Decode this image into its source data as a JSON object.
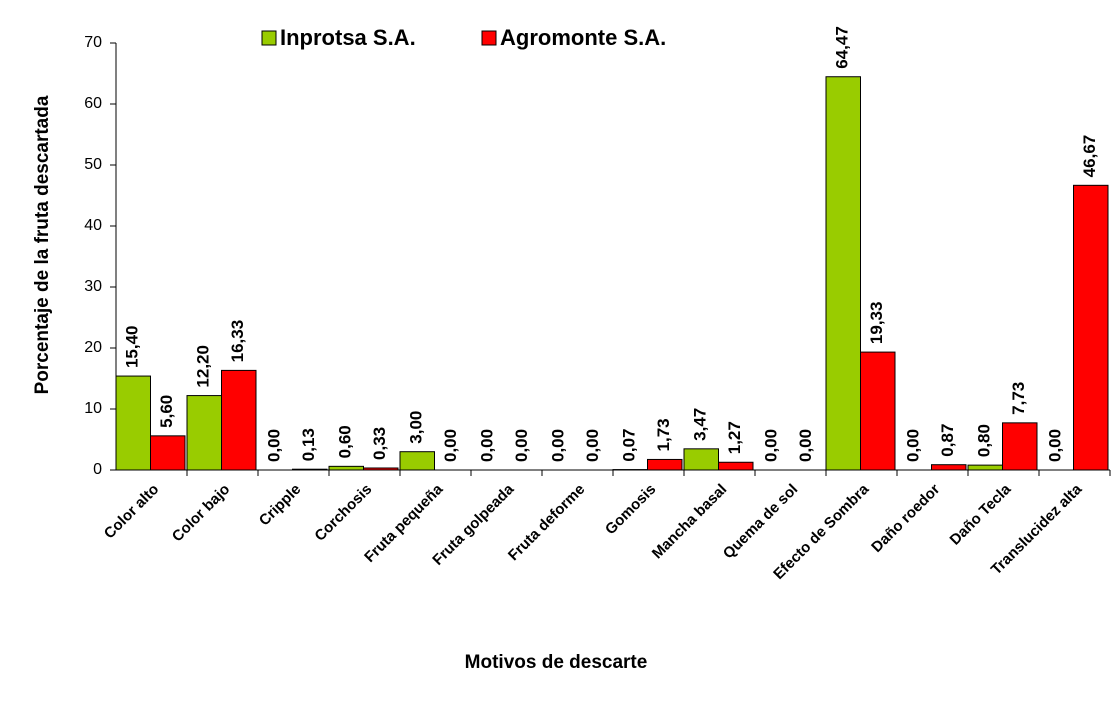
{
  "chart_data": {
    "type": "bar",
    "xlabel": "Motivos de descarte",
    "ylabel": "Porcentaje de la fruta descartada",
    "categories": [
      "Color alto",
      "Color bajo",
      "Cripple",
      "Corchosis",
      "Fruta pequeña",
      "Fruta golpeada",
      "Fruta deforme",
      "Gomosis",
      "Mancha basal",
      "Quema de sol",
      "Efecto de Sombra",
      "Daño roedor",
      "Daño Tecla",
      "Translucidez alta"
    ],
    "series": [
      {
        "name": "Inprotsa S.A.",
        "color": "#99cc00",
        "values": [
          15.4,
          12.2,
          0.0,
          0.6,
          3.0,
          0.0,
          0.0,
          0.07,
          3.47,
          0.0,
          64.47,
          0.0,
          0.8,
          0.0
        ],
        "value_labels": [
          "15,40",
          "12,20",
          "0,00",
          "0,60",
          "3,00",
          "0,00",
          "0,00",
          "0,07",
          "3,47",
          "0,00",
          "64,47",
          "0,00",
          "0,80",
          "0,00"
        ]
      },
      {
        "name": "Agromonte S.A.",
        "color": "#ff0000",
        "values": [
          5.6,
          16.33,
          0.13,
          0.33,
          0.0,
          0.0,
          0.0,
          1.73,
          1.27,
          0.0,
          19.33,
          0.87,
          7.73,
          46.67
        ],
        "value_labels": [
          "5,60",
          "16,33",
          "0,13",
          "0,33",
          "0,00",
          "0,00",
          "0,00",
          "1,73",
          "1,27",
          "0,00",
          "19,33",
          "0,87",
          "7,73",
          "46,67"
        ]
      }
    ],
    "ylim": [
      0,
      70
    ],
    "yticks": [
      0,
      10,
      20,
      30,
      40,
      50,
      60,
      70
    ],
    "legend": "top"
  }
}
